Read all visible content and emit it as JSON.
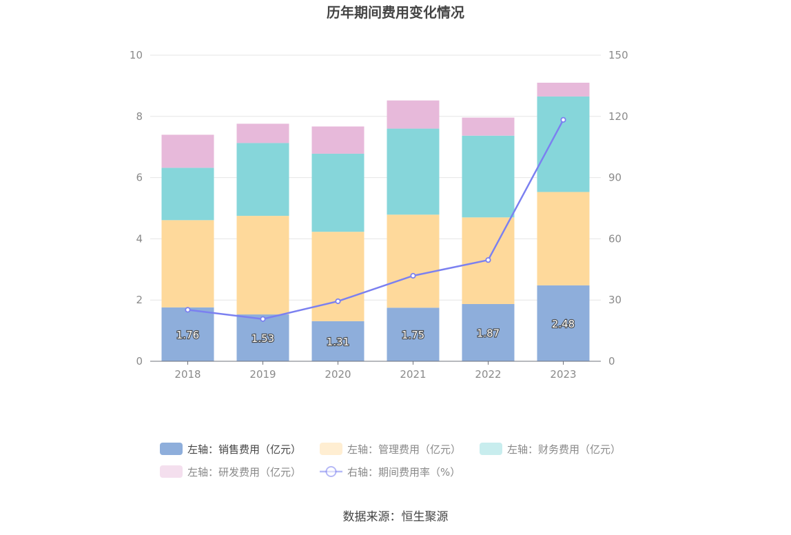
{
  "chart_data": {
    "type": "bar",
    "title": "历年期间费用变化情况",
    "categories": [
      "2018",
      "2019",
      "2020",
      "2021",
      "2022",
      "2023"
    ],
    "y_left": {
      "ylim": [
        0,
        10
      ],
      "ticks": [
        "0",
        "2",
        "4",
        "6",
        "8",
        "10"
      ]
    },
    "y_right": {
      "ylim": [
        0,
        150
      ],
      "ticks": [
        "0",
        "30",
        "60",
        "90",
        "120",
        "150"
      ]
    },
    "series": [
      {
        "name": "左轴：销售费用（亿元）",
        "type": "bar",
        "axis": "left",
        "color": "#8eaedb",
        "values": [
          1.76,
          1.53,
          1.31,
          1.75,
          1.87,
          2.48
        ],
        "labels": [
          "1.76",
          "1.53",
          "1.31",
          "1.75",
          "1.87",
          "2.48"
        ]
      },
      {
        "name": "左轴：管理费用（亿元）",
        "type": "bar",
        "axis": "left",
        "color": "#fed99b",
        "values": [
          2.85,
          3.22,
          2.92,
          3.04,
          2.83,
          3.05
        ]
      },
      {
        "name": "左轴：财务费用（亿元）",
        "type": "bar",
        "axis": "left",
        "color": "#86d6da",
        "values": [
          1.71,
          2.38,
          2.55,
          2.81,
          2.67,
          3.12
        ]
      },
      {
        "name": "左轴：研发费用（亿元）",
        "type": "bar",
        "axis": "left",
        "color": "#e7b9da",
        "values": [
          1.08,
          0.63,
          0.89,
          0.92,
          0.59,
          0.45
        ]
      },
      {
        "name": "右轴：期间费用率（%）",
        "type": "line",
        "axis": "right",
        "color": "#7b80f0",
        "values": [
          25.2,
          20.7,
          29.4,
          41.9,
          49.6,
          118.3
        ]
      }
    ],
    "grid": true,
    "legend": "bottom"
  },
  "source_text": "数据来源：恒生聚源"
}
